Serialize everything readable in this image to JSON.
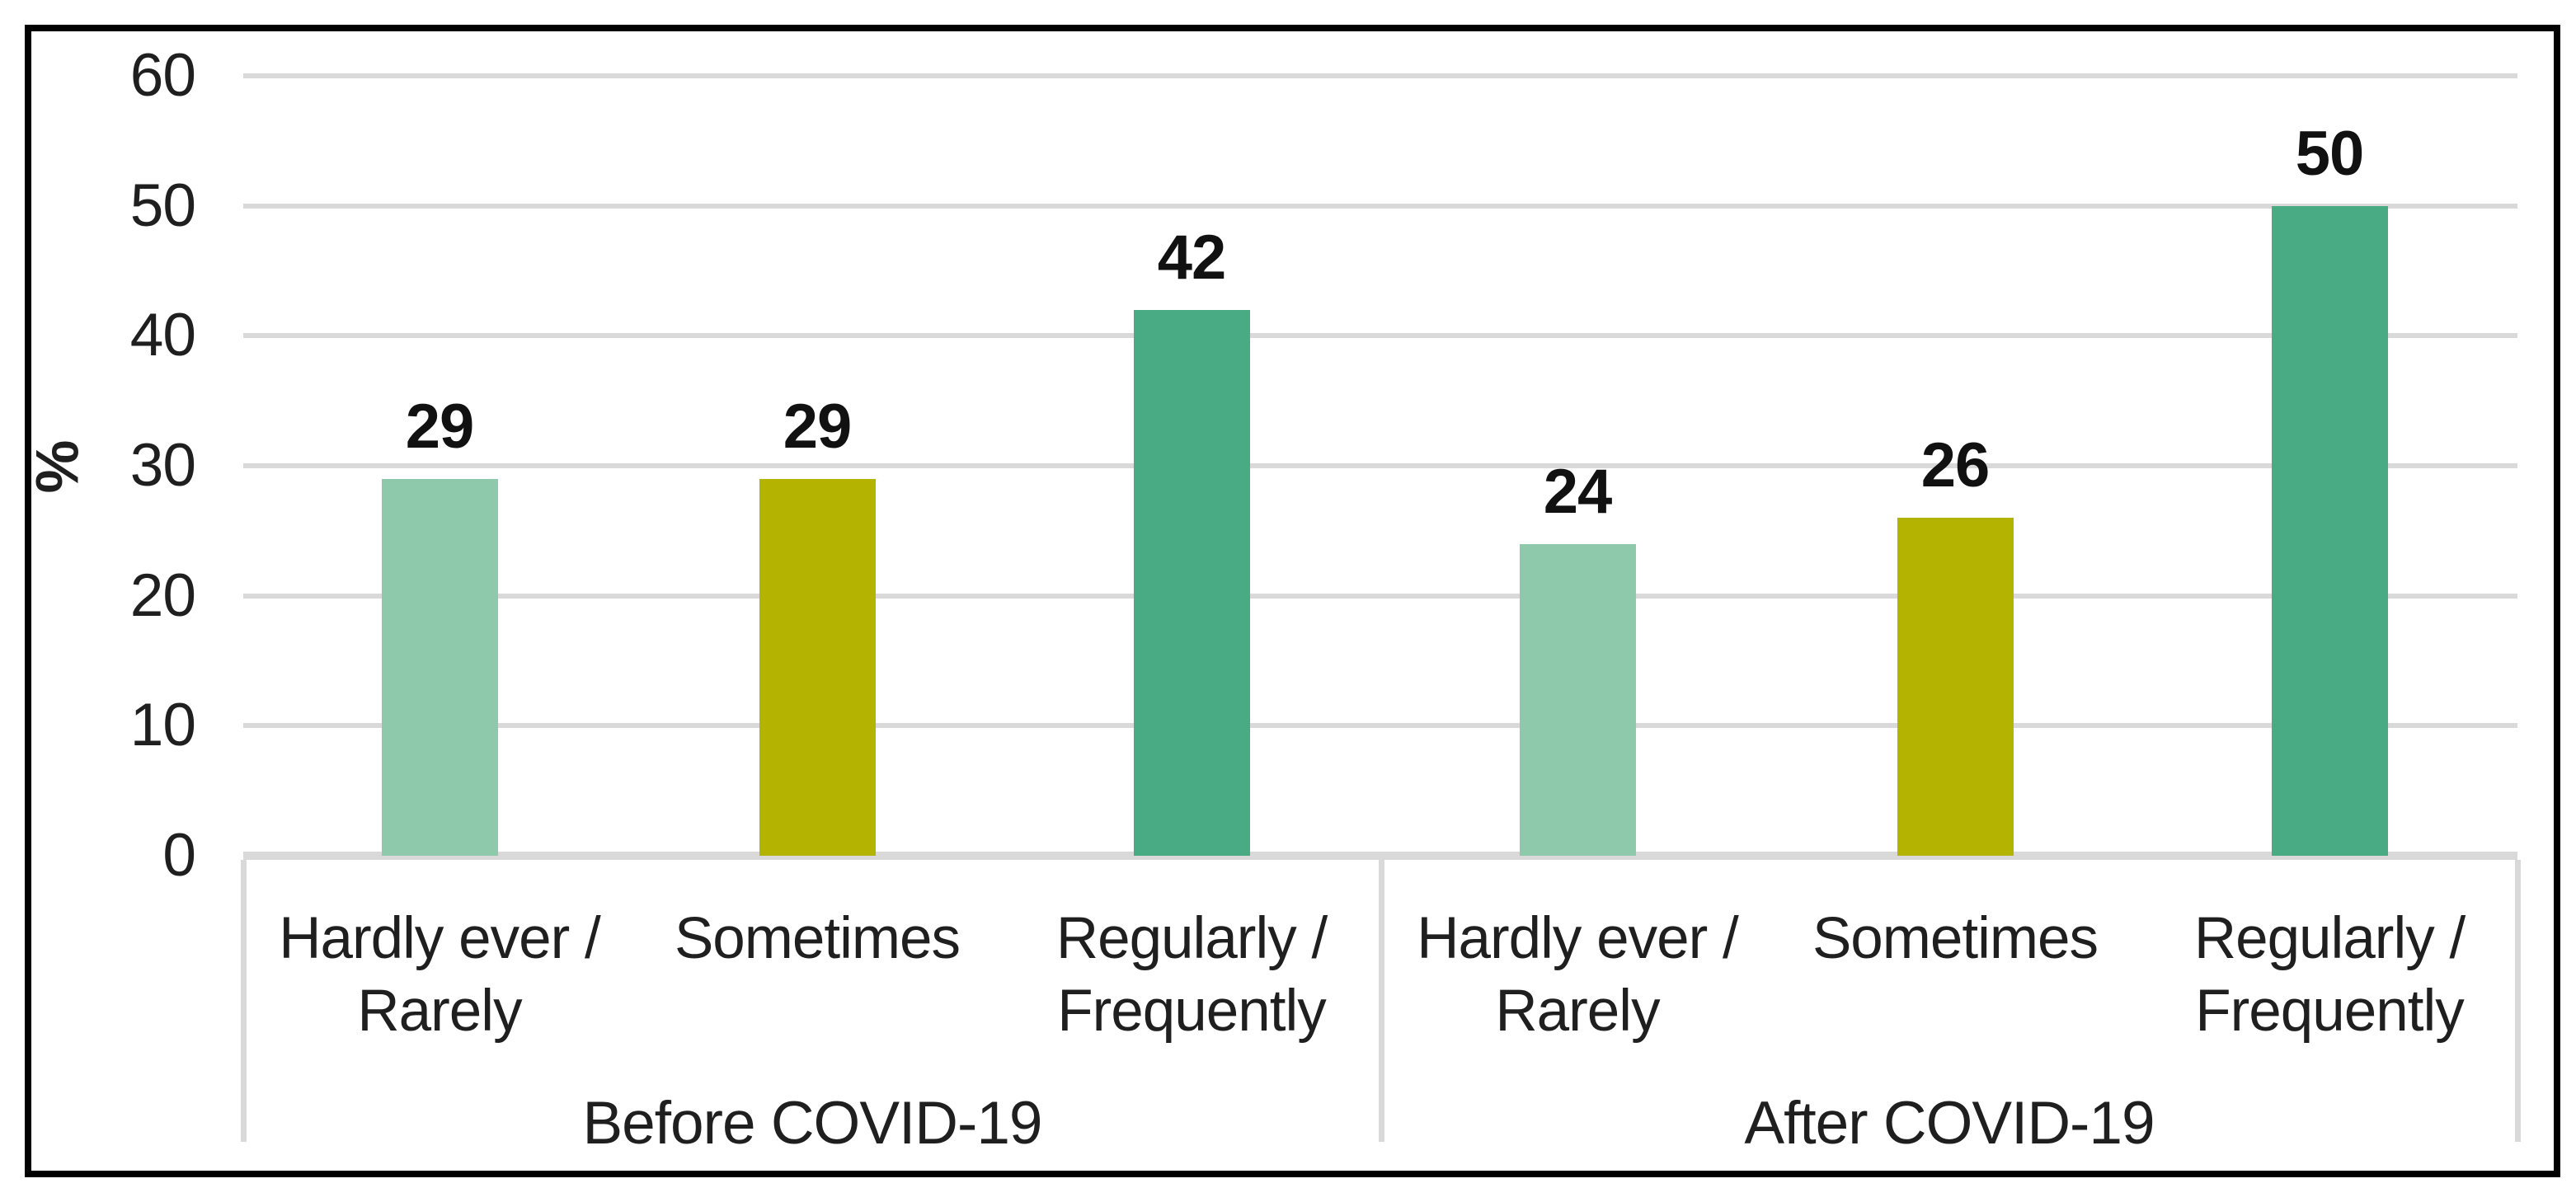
{
  "chart_data": {
    "type": "bar",
    "title": "",
    "ylabel": "%",
    "ylim": [
      0,
      60
    ],
    "yticks": [
      0,
      10,
      20,
      30,
      40,
      50,
      60
    ],
    "grid": true,
    "legend": false,
    "categories": [
      "Hardly ever / Rarely",
      "Sometimes",
      "Regularly / Frequently"
    ],
    "category_display_lines": [
      [
        "Hardly ever /",
        "Rarely"
      ],
      [
        "Sometimes"
      ],
      [
        "Regularly /",
        "Frequently"
      ]
    ],
    "series": [
      {
        "name": "Before COVID-19",
        "values": [
          29,
          29,
          42
        ]
      },
      {
        "name": "After COVID-19",
        "values": [
          24,
          26,
          50
        ]
      }
    ],
    "bar_colors_by_category": [
      "#8EC9AB",
      "#B5B301",
      "#48AB83"
    ]
  },
  "colors": {
    "grid": "#D9D9D9",
    "axis": "#D9D9D9",
    "divider": "#D9D9D9",
    "text": "#1F1F1F",
    "value_text": "#111111",
    "frame_border": "#000000",
    "background": "#FFFFFF"
  }
}
